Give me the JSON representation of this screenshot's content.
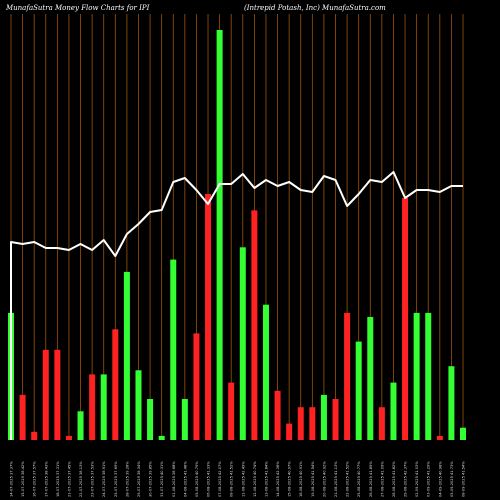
{
  "header": {
    "left_title": "MunafaSutra  Money Flow  Charts for IPI",
    "right_title": "(Intrepid Potash,  Inc) MunafaSutra.com"
  },
  "colors": {
    "background": "#000000",
    "up": "#33ff33",
    "down": "#ff2222",
    "line": "#ffffff",
    "grid": "#a0520a"
  },
  "chart_data": {
    "type": "bar",
    "title": "MunafaSutra  Money Flow  Charts for IPI",
    "subtitle": "(Intrepid Potash,  Inc) MunafaSutra.com",
    "grid": "vertical",
    "categories": [
      "14-07-2025 37.37%",
      "15-07-2025 38.42%",
      "16-07-2025 37.57%",
      "17-07-2025 38.43%",
      "18-07-2025 37.31%",
      "21-07-2025 37.45%",
      "22-07-2025 38.13%",
      "23-07-2025 37.53%",
      "24-07-2025 38.91%",
      "25-07-2025 37.69%",
      "28-07-2025 39.28%",
      "29-07-2025 38.34%",
      "30-07-2025 39.85%",
      "31-07-2025 40.31%",
      "01-08-2025 38.68%",
      "04-08-2025 41.48%",
      "05-08-2025 40.79%",
      "06-08-2025 41.33%",
      "07-08-2025 42.07%",
      "08-08-2025 41.52%",
      "11-08-2025 42.49%",
      "12-08-2025 40.74%",
      "13-08-2025 41.84%",
      "14-08-2025 42.38%",
      "15-08-2025 40.97%",
      "18-08-2025 40.91%",
      "19-08-2025 41.54%",
      "20-08-2025 40.92%",
      "21-08-2025 41.13%",
      "22-08-2025 41.52%",
      "25-08-2025 40.77%",
      "26-08-2025 41.85%",
      "27-08-2025 41.09%",
      "28-08-2025 41.82%",
      "29-08-2025 42.37%",
      "02-09-2025 41.03%",
      "03-09-2025 41.29%",
      "04-09-2025 40.98%",
      "05-09-2025 41.73%",
      "08-09-2025 41.54%"
    ],
    "volume_bars": [
      {
        "value": 31,
        "dir": "up"
      },
      {
        "value": 11,
        "dir": "down"
      },
      {
        "value": 2,
        "dir": "down"
      },
      {
        "value": 22,
        "dir": "down"
      },
      {
        "value": 22,
        "dir": "down"
      },
      {
        "value": 1,
        "dir": "down"
      },
      {
        "value": 7,
        "dir": "up"
      },
      {
        "value": 16,
        "dir": "down"
      },
      {
        "value": 16,
        "dir": "up"
      },
      {
        "value": 27,
        "dir": "down"
      },
      {
        "value": 41,
        "dir": "up"
      },
      {
        "value": 17,
        "dir": "up"
      },
      {
        "value": 10,
        "dir": "up"
      },
      {
        "value": 1,
        "dir": "up"
      },
      {
        "value": 44,
        "dir": "up"
      },
      {
        "value": 10,
        "dir": "up"
      },
      {
        "value": 26,
        "dir": "down"
      },
      {
        "value": 60,
        "dir": "down"
      },
      {
        "value": 100,
        "dir": "up"
      },
      {
        "value": 14,
        "dir": "down"
      },
      {
        "value": 47,
        "dir": "up"
      },
      {
        "value": 56,
        "dir": "down"
      },
      {
        "value": 33,
        "dir": "up"
      },
      {
        "value": 12,
        "dir": "down"
      },
      {
        "value": 4,
        "dir": "down"
      },
      {
        "value": 8,
        "dir": "down"
      },
      {
        "value": 8,
        "dir": "down"
      },
      {
        "value": 11,
        "dir": "up"
      },
      {
        "value": 10,
        "dir": "down"
      },
      {
        "value": 31,
        "dir": "down"
      },
      {
        "value": 24,
        "dir": "up"
      },
      {
        "value": 30,
        "dir": "up"
      },
      {
        "value": 8,
        "dir": "down"
      },
      {
        "value": 14,
        "dir": "up"
      },
      {
        "value": 59,
        "dir": "down"
      },
      {
        "value": 31,
        "dir": "up"
      },
      {
        "value": 31,
        "dir": "up"
      },
      {
        "value": 1,
        "dir": "down"
      },
      {
        "value": 18,
        "dir": "up"
      },
      {
        "value": 3,
        "dir": "up"
      }
    ],
    "price_line": [
      37.4,
      37.3,
      37.4,
      37.1,
      37.1,
      37.0,
      37.3,
      37.0,
      37.5,
      36.7,
      37.8,
      38.3,
      38.9,
      39.0,
      40.4,
      40.6,
      40.0,
      39.3,
      40.3,
      40.3,
      40.8,
      40.1,
      40.5,
      40.2,
      40.4,
      40.0,
      39.9,
      40.7,
      40.5,
      39.2,
      39.8,
      40.5,
      40.4,
      40.9,
      39.6,
      40.0,
      40.0,
      39.9,
      40.2,
      40.2
    ]
  }
}
